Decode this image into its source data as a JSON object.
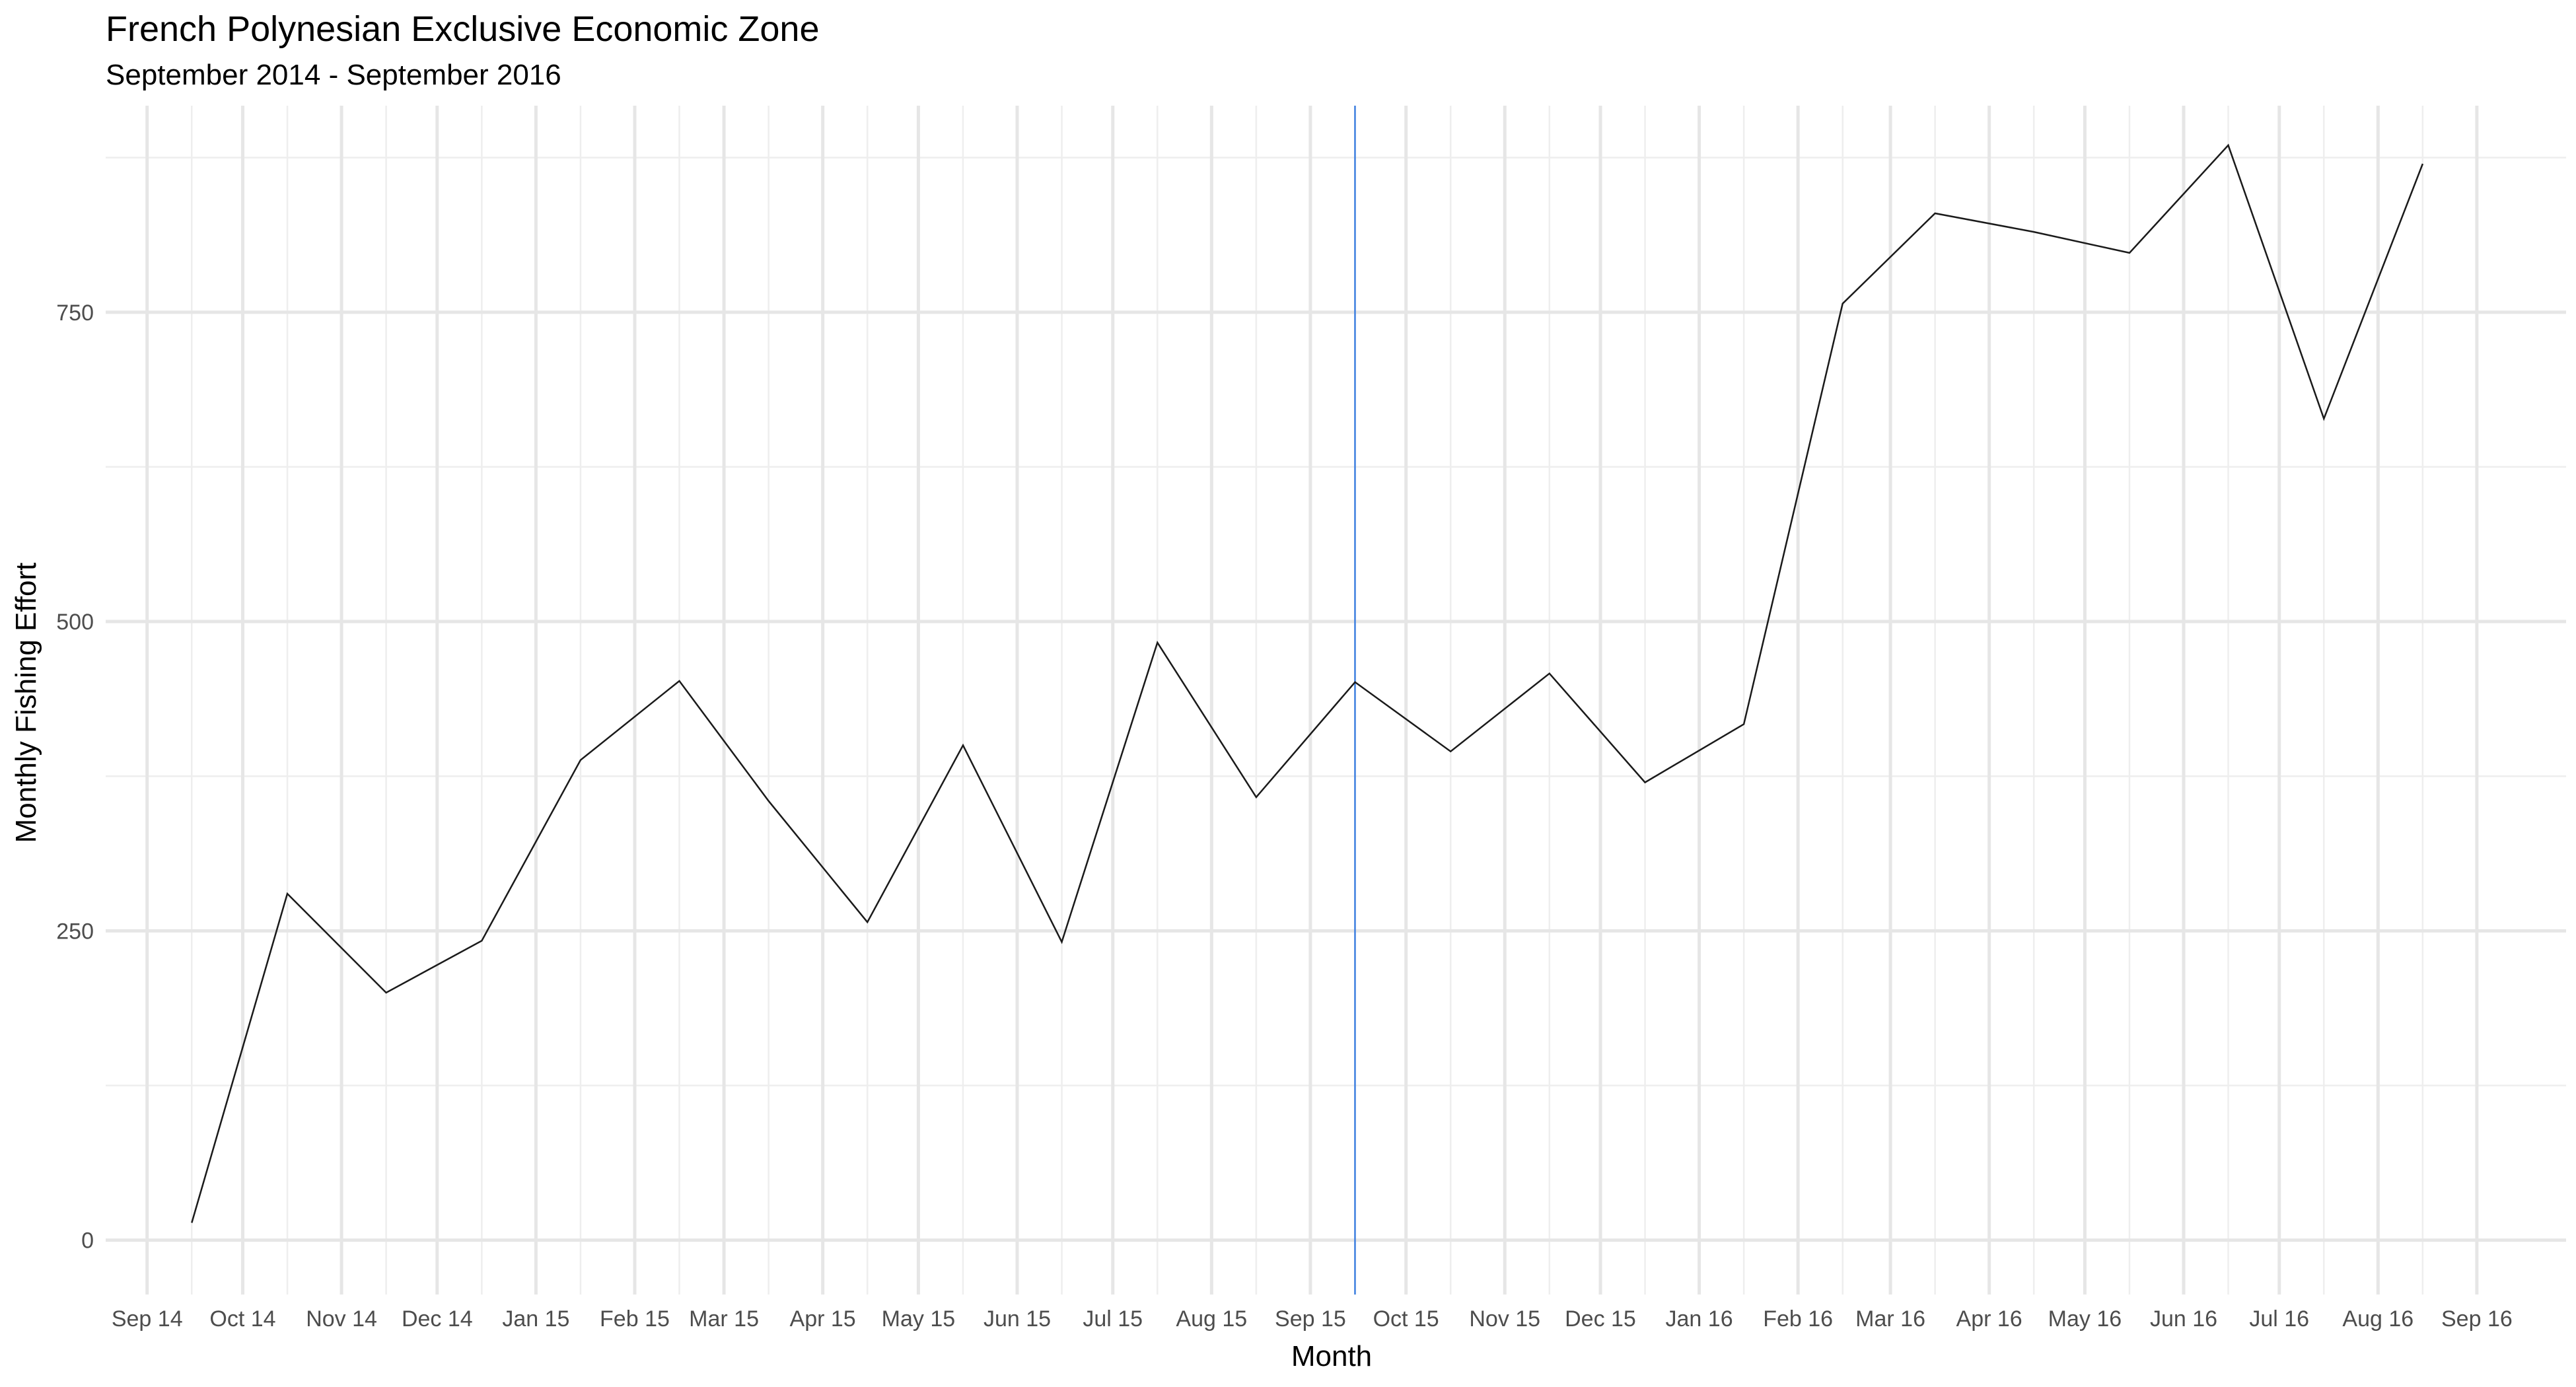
{
  "chart_data": {
    "type": "line",
    "title": "French Polynesian Exclusive Economic Zone",
    "subtitle": "September 2014 - September 2016",
    "xlabel": "Month",
    "ylabel": "Monthly Fishing Effort",
    "x_tick_labels": [
      "Sep 14",
      "Oct 14",
      "Nov 14",
      "Dec 14",
      "Jan 15",
      "Feb 15",
      "Mar 15",
      "Apr 15",
      "May 15",
      "Jun 15",
      "Jul 15",
      "Aug 15",
      "Sep 15",
      "Oct 15",
      "Nov 15",
      "Dec 15",
      "Jan 16",
      "Feb 16",
      "Mar 16",
      "Apr 16",
      "May 16",
      "Jun 16",
      "Jul 16",
      "Aug 16",
      "Sep 16"
    ],
    "x_tick_dates": [
      "2014-09-01",
      "2014-10-01",
      "2014-11-01",
      "2014-12-01",
      "2015-01-01",
      "2015-02-01",
      "2015-03-01",
      "2015-04-01",
      "2015-05-01",
      "2015-06-01",
      "2015-07-01",
      "2015-08-01",
      "2015-09-01",
      "2015-10-01",
      "2015-11-01",
      "2015-12-01",
      "2016-01-01",
      "2016-02-01",
      "2016-03-01",
      "2016-04-01",
      "2016-05-01",
      "2016-06-01",
      "2016-07-01",
      "2016-08-01",
      "2016-09-01"
    ],
    "y_ticks": [
      0,
      250,
      500,
      750
    ],
    "y_tick_labels": [
      "0",
      "250",
      "500",
      "750"
    ],
    "xlim": [
      "2014-08-19",
      "2016-09-29"
    ],
    "ylim": [
      -44,
      917
    ],
    "grid": true,
    "series": [
      {
        "color": "#1a1a1a",
        "x": [
          "2014-09-15",
          "2014-10-15",
          "2014-11-15",
          "2014-12-15",
          "2015-01-15",
          "2015-02-15",
          "2015-03-15",
          "2015-04-15",
          "2015-05-15",
          "2015-06-15",
          "2015-07-15",
          "2015-08-15",
          "2015-09-15",
          "2015-10-15",
          "2015-11-15",
          "2015-12-15",
          "2016-01-15",
          "2016-02-15",
          "2016-03-15",
          "2016-04-15",
          "2016-05-15",
          "2016-06-15",
          "2016-07-15",
          "2016-08-15"
        ],
        "y": [
          14,
          280,
          200,
          242,
          388,
          452,
          355,
          257,
          400,
          241,
          483,
          358,
          451,
          395,
          458,
          370,
          417,
          757,
          830,
          815,
          798,
          885,
          664,
          870
        ]
      }
    ],
    "annotations": [
      {
        "type": "vline",
        "x": "2015-09-15",
        "color": "#3d7fe0"
      }
    ]
  }
}
